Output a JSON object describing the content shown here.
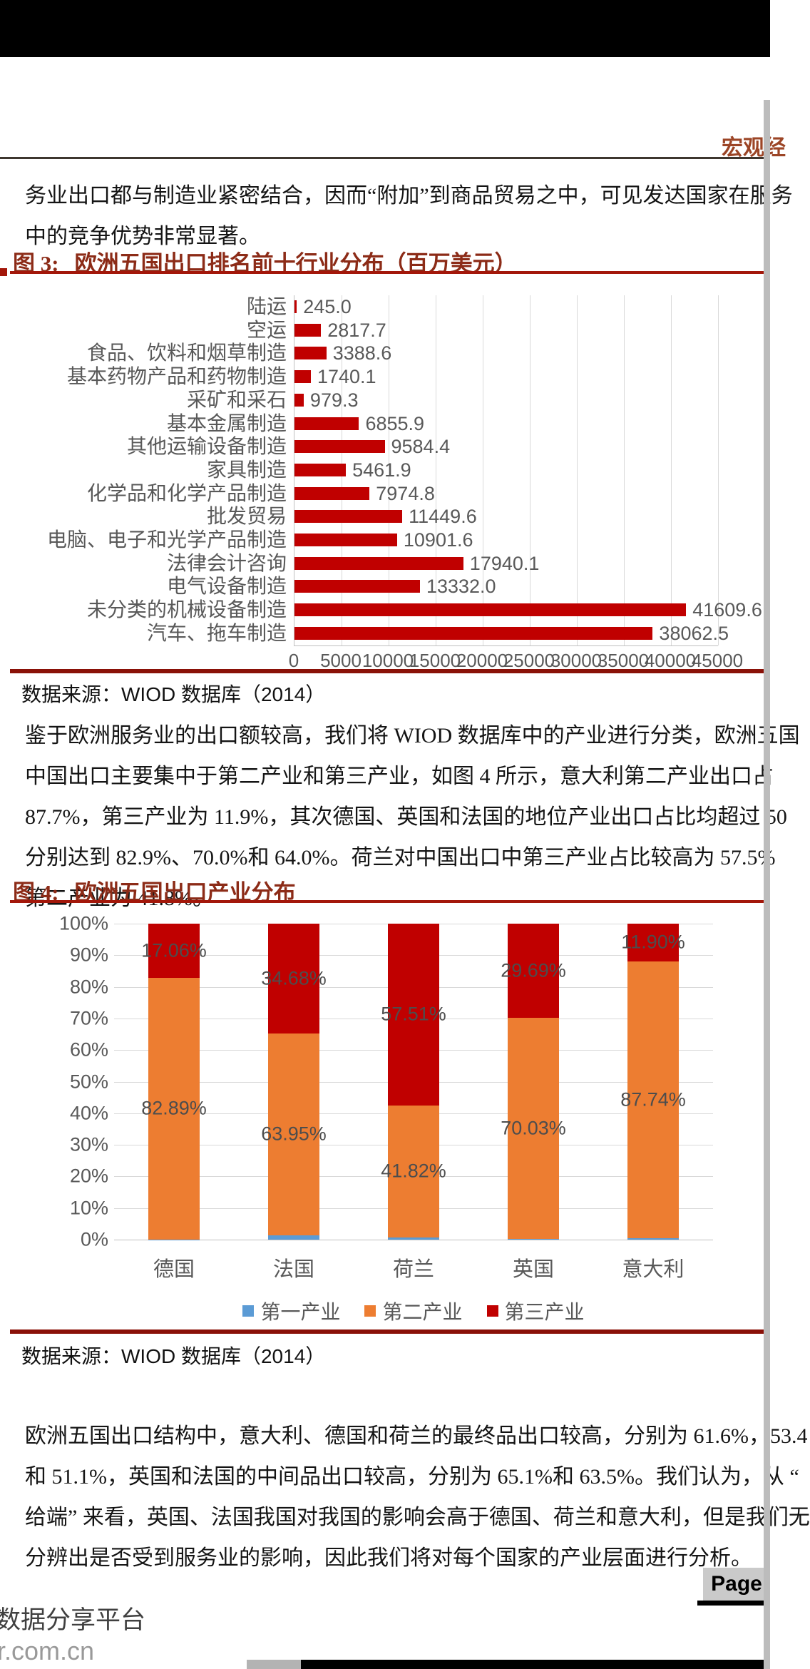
{
  "header": {
    "section_title": "宏观经"
  },
  "paragraphs": {
    "p1": [
      "务业出口都与制造业紧密结合，因而“附加”到商品贸易之中，可见发达国家在服务",
      "中的竞争优势非常显著。"
    ],
    "p2": [
      "鉴于欧洲服务业的出口额较高，我们将 WIOD 数据库中的产业进行分类，欧洲五国",
      "中国出口主要集中于第二产业和第三产业，如图 4 所示，意大利第二产业出口占",
      "87.7%，第三产业为 11.9%，其次德国、英国和法国的地位产业出口占比均超过 50",
      "分别达到 82.9%、70.0%和 64.0%。荷兰对中国出口中第三产业占比较高为 57.5%",
      "第二产业为 41.8%。"
    ],
    "p3": [
      "欧洲五国出口结构中，意大利、德国和荷兰的最终品出口较高，分别为 61.6%，53.4",
      "和 51.1%，英国和法国的中间品出口较高，分别为 65.1%和 63.5%。我们认为，从 “",
      "给端” 来看，英国、法国我国对我国的影响会高于德国、荷兰和意大利，但是我们无",
      "分辨出是否受到服务业的影响，因此我们将对每个国家的产业层面进行分析。"
    ]
  },
  "figure3": {
    "label": "图 3:",
    "title": "欧洲五国出口排名前十行业分布（百万美元）",
    "source": "数据来源：WIOD 数据库（2014）"
  },
  "figure4": {
    "label": "图 4:",
    "title": "欧洲五国出口产业分布",
    "source": "数据来源：WIOD 数据库（2014）"
  },
  "footer": {
    "page_label": "Page",
    "platform": "数据分享平台",
    "domain": "r.com.cn"
  },
  "colors": {
    "bar_red": "#c00000",
    "orange": "#ed7d31",
    "blue": "#5b9bd5",
    "accent_dark_red": "#8c2b17",
    "rule_red": "#8a1108",
    "label_gray": "#595959"
  },
  "chart_data": [
    {
      "type": "bar",
      "orientation": "horizontal",
      "title": "欧洲五国出口排名前十行业分布（百万美元）",
      "categories": [
        "陆运",
        "空运",
        "食品、饮料和烟草制造",
        "基本药物产品和药物制造",
        "采矿和采石",
        "基本金属制造",
        "其他运输设备制造",
        "家具制造",
        "化学品和化学产品制造",
        "批发贸易",
        "电脑、电子和光学产品制造",
        "法律会计咨询",
        "电气设备制造",
        "未分类的机械设备制造",
        "汽车、拖车制造"
      ],
      "values": [
        245.0,
        2817.7,
        3388.6,
        1740.1,
        979.3,
        6855.9,
        9584.4,
        5461.9,
        7974.8,
        11449.6,
        10901.6,
        17940.1,
        13332.0,
        41609.6,
        38062.5
      ],
      "value_labels": [
        "245.0",
        "2817.7",
        "3388.6",
        "1740.1",
        "979.3",
        "6855.9",
        "9584.4",
        "5461.9",
        "7974.8",
        "11449.6",
        "10901.6",
        "17940.1",
        "13332.0",
        "41609.6",
        "38062.5"
      ],
      "xlim": [
        0,
        45000
      ],
      "xticks": [
        0,
        5000,
        10000,
        15000,
        20000,
        25000,
        30000,
        35000,
        40000,
        45000
      ],
      "xtick_labels": [
        "0",
        "5000",
        "10000",
        "15000",
        "20000",
        "25000",
        "30000",
        "35000",
        "40000",
        "45000"
      ],
      "bar_color": "#c00000",
      "grid": true,
      "xlabel": "",
      "ylabel": ""
    },
    {
      "type": "bar",
      "subtype": "stacked-100",
      "title": "欧洲五国出口产业分布",
      "categories": [
        "德国",
        "法国",
        "荷兰",
        "英国",
        "意大利"
      ],
      "series": [
        {
          "name": "第一产业",
          "color": "#5b9bd5",
          "values": [
            0.05,
            1.37,
            0.67,
            0.28,
            0.36
          ],
          "labels": [
            "",
            "",
            "",
            "",
            ""
          ]
        },
        {
          "name": "第二产业",
          "color": "#ed7d31",
          "values": [
            82.89,
            63.95,
            41.82,
            70.03,
            87.74
          ],
          "labels": [
            "82.89%",
            "63.95%",
            "41.82%",
            "70.03%",
            "87.74%"
          ]
        },
        {
          "name": "第三产业",
          "color": "#c00000",
          "values": [
            17.06,
            34.68,
            57.51,
            29.69,
            11.9
          ],
          "labels": [
            "17.06%",
            "34.68%",
            "57.51%",
            "29.69%",
            "11.90%"
          ]
        }
      ],
      "ylim": [
        0,
        100
      ],
      "ytick_labels": [
        "0%",
        "10%",
        "20%",
        "30%",
        "40%",
        "50%",
        "60%",
        "70%",
        "80%",
        "90%",
        "100%"
      ],
      "legend": [
        "第一产业",
        "第二产业",
        "第三产业"
      ],
      "legend_position": "bottom",
      "grid": true
    }
  ]
}
